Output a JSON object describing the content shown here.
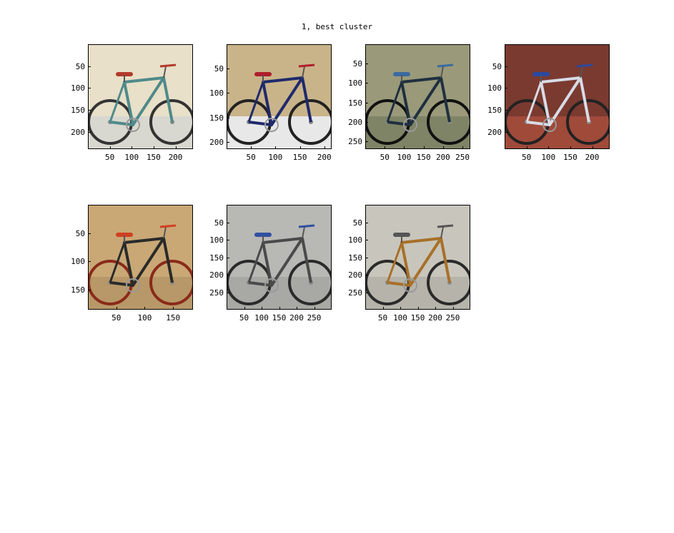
{
  "figure": {
    "title": "1, best cluster"
  },
  "chart_data": [
    {
      "type": "image",
      "panel": 1,
      "xticks": [
        "50",
        "100",
        "150",
        "200"
      ],
      "yticks": [
        "50",
        "100",
        "150",
        "200"
      ],
      "xlim": [
        0,
        240
      ],
      "ylim": [
        0,
        240
      ],
      "scene": {
        "background": "#e8e0c8",
        "wall": "#d8d8d0",
        "frame": "#4f8a8a",
        "tire": "#333333",
        "accent": "#b33a2a"
      }
    },
    {
      "type": "image",
      "panel": 2,
      "xticks": [
        "50",
        "100",
        "150",
        "200"
      ],
      "yticks": [
        "50",
        "100",
        "150",
        "200"
      ],
      "xlim": [
        0,
        215
      ],
      "ylim": [
        0,
        215
      ],
      "scene": {
        "background": "#c9b48a",
        "wall": "#e8e8e8",
        "frame": "#1f2a6b",
        "tire": "#222222",
        "accent": "#b01e2a"
      }
    },
    {
      "type": "image",
      "panel": 3,
      "xticks": [
        "50",
        "100",
        "150",
        "200",
        "250"
      ],
      "yticks": [
        "50",
        "100",
        "150",
        "200",
        "250"
      ],
      "xlim": [
        0,
        270
      ],
      "ylim": [
        0,
        270
      ],
      "scene": {
        "background": "#9a9a7a",
        "wall": "#7f8466",
        "frame": "#203040",
        "tire": "#111111",
        "accent": "#3a6aa0"
      }
    },
    {
      "type": "image",
      "panel": 4,
      "xticks": [
        "50",
        "100",
        "150",
        "200"
      ],
      "yticks": [
        "50",
        "100",
        "150",
        "200"
      ],
      "xlim": [
        0,
        240
      ],
      "ylim": [
        0,
        240
      ],
      "scene": {
        "background": "#7a3a30",
        "wall": "#a04a3a",
        "frame": "#d8dcE6",
        "tire": "#222222",
        "accent": "#2a4aa0"
      }
    },
    {
      "type": "image",
      "panel": 5,
      "xticks": [
        "50",
        "100",
        "150"
      ],
      "yticks": [
        "50",
        "100",
        "150"
      ],
      "xlim": [
        0,
        185
      ],
      "ylim": [
        0,
        185
      ],
      "scene": {
        "background": "#c9a876",
        "wall": "#b89868",
        "frame": "#2a2a2a",
        "tire": "#8a2a1a",
        "accent": "#d04020"
      }
    },
    {
      "type": "image",
      "panel": 6,
      "xticks": [
        "50",
        "100",
        "150",
        "200",
        "250"
      ],
      "yticks": [
        "50",
        "100",
        "150",
        "200",
        "250"
      ],
      "xlim": [
        0,
        300
      ],
      "ylim": [
        0,
        300
      ],
      "scene": {
        "background": "#b8b8b4",
        "wall": "#a8a8a4",
        "frame": "#4a4a4a",
        "tire": "#2a2a2a",
        "accent": "#3050a0"
      }
    },
    {
      "type": "image",
      "panel": 7,
      "xticks": [
        "50",
        "100",
        "150",
        "200",
        "250"
      ],
      "yticks": [
        "50",
        "100",
        "150",
        "200",
        "250"
      ],
      "xlim": [
        0,
        300
      ],
      "ylim": [
        0,
        300
      ],
      "scene": {
        "background": "#c8c6bc",
        "wall": "#b6b4aa",
        "frame": "#a8702a",
        "tire": "#2a2a2a",
        "accent": "#555555"
      }
    }
  ]
}
